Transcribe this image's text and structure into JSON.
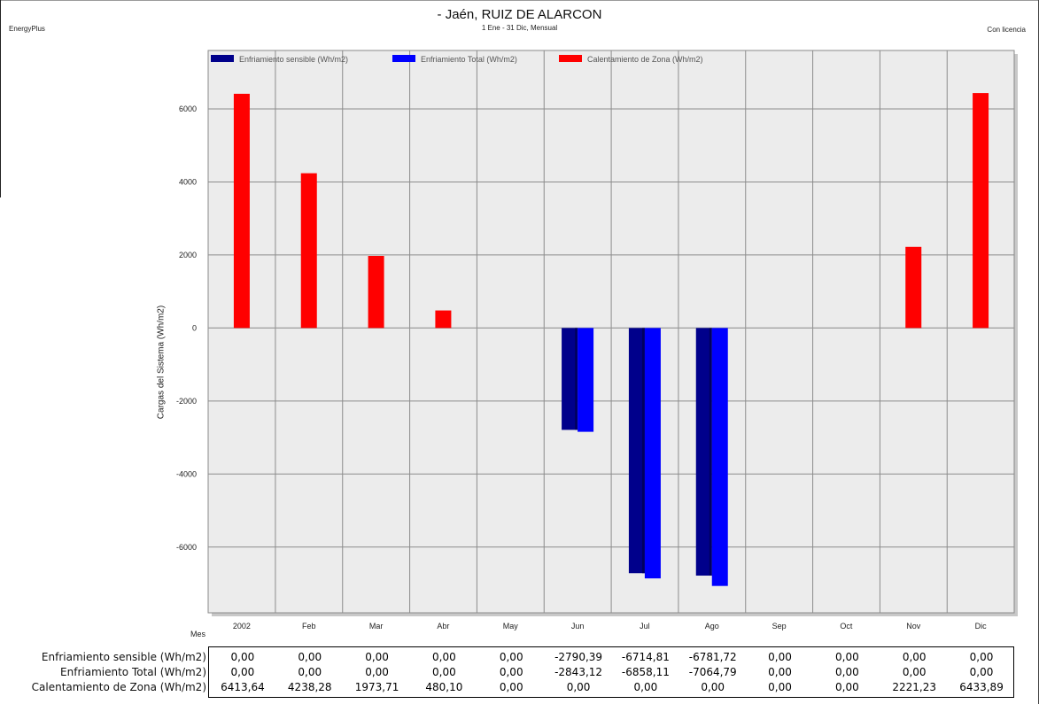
{
  "header": {
    "title": "- Jaén, RUIZ DE ALARCON",
    "subtitle": "1 Ene - 31 Dic, Mensual",
    "left_label": "EnergyPlus",
    "right_label": "Con licencia"
  },
  "chart_data": {
    "type": "bar",
    "ylabel": "Cargas del Sistema (Wh/m2)",
    "xlabel": "Mes",
    "categories": [
      "2002",
      "Feb",
      "Mar",
      "Abr",
      "May",
      "Jun",
      "Jul",
      "Ago",
      "Sep",
      "Oct",
      "Nov",
      "Dic"
    ],
    "ylim": [
      -7800,
      7600
    ],
    "yticks": [
      "6000",
      "4000",
      "2000",
      "0",
      "-2000",
      "-4000",
      "-6000"
    ],
    "ytick_values": [
      6000,
      4000,
      2000,
      0,
      -2000,
      -4000,
      -6000
    ],
    "grid": true,
    "legend_position": "top",
    "series": [
      {
        "name": "Enfriamiento sensible (Wh/m2)",
        "color": "#00008b",
        "values": [
          0,
          0,
          0,
          0,
          0,
          -2790.39,
          -6714.81,
          -6781.72,
          0,
          0,
          0,
          0
        ]
      },
      {
        "name": "Enfriamiento Total (Wh/m2)",
        "color": "#0000ff",
        "values": [
          0,
          0,
          0,
          0,
          0,
          -2843.12,
          -6858.11,
          -7064.79,
          0,
          0,
          0,
          0
        ]
      },
      {
        "name": "Calentamiento de Zona (Wh/m2)",
        "color": "#ff0000",
        "values": [
          6413.64,
          4238.28,
          1973.71,
          480.1,
          0,
          0,
          0,
          0,
          0,
          0,
          2221.23,
          6433.89
        ]
      }
    ],
    "table": {
      "rows": [
        {
          "label": "Enfriamiento sensible (Wh/m2)",
          "cells": [
            "0,00",
            "0,00",
            "0,00",
            "0,00",
            "0,00",
            "-2790,39",
            "-6714,81",
            "-6781,72",
            "0,00",
            "0,00",
            "0,00",
            "0,00"
          ]
        },
        {
          "label": "Enfriamiento Total (Wh/m2)",
          "cells": [
            "0,00",
            "0,00",
            "0,00",
            "0,00",
            "0,00",
            "-2843,12",
            "-6858,11",
            "-7064,79",
            "0,00",
            "0,00",
            "0,00",
            "0,00"
          ]
        },
        {
          "label": "Calentamiento de Zona (Wh/m2)",
          "cells": [
            "6413,64",
            "4238,28",
            "1973,71",
            "480,10",
            "0,00",
            "0,00",
            "0,00",
            "0,00",
            "0,00",
            "0,00",
            "2221,23",
            "6433,89"
          ]
        }
      ]
    }
  }
}
